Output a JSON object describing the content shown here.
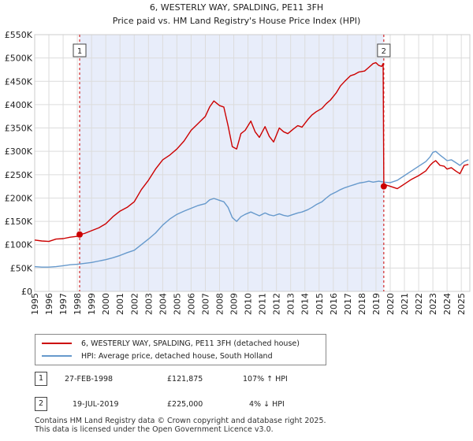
{
  "chart_data": {
    "type": "line",
    "title": "6, WESTERLY WAY, SPALDING, PE11 3FH",
    "subtitle": "Price paid vs. HM Land Registry's House Price Index (HPI)",
    "xlabel": "",
    "ylabel": "",
    "xlim": [
      1995,
      2025.6
    ],
    "ylim": [
      0,
      550000
    ],
    "y_ticks": [
      {
        "value": 0,
        "label": "£0"
      },
      {
        "value": 50000,
        "label": "£50K"
      },
      {
        "value": 100000,
        "label": "£100K"
      },
      {
        "value": 150000,
        "label": "£150K"
      },
      {
        "value": 200000,
        "label": "£200K"
      },
      {
        "value": 250000,
        "label": "£250K"
      },
      {
        "value": 300000,
        "label": "£300K"
      },
      {
        "value": 350000,
        "label": "£350K"
      },
      {
        "value": 400000,
        "label": "£400K"
      },
      {
        "value": 450000,
        "label": "£450K"
      },
      {
        "value": 500000,
        "label": "£500K"
      },
      {
        "value": 550000,
        "label": "£550K"
      }
    ],
    "x_ticks": [
      "1995",
      "1996",
      "1997",
      "1998",
      "1999",
      "2000",
      "2001",
      "2002",
      "2003",
      "2004",
      "2005",
      "2006",
      "2007",
      "2008",
      "2009",
      "2010",
      "2011",
      "2012",
      "2013",
      "2014",
      "2015",
      "2016",
      "2017",
      "2018",
      "2019",
      "2020",
      "2021",
      "2022",
      "2023",
      "2024",
      "2025"
    ],
    "grid": true,
    "colors": {
      "property": "#cc0000",
      "hpi": "#6699cc",
      "band": "#e8edfa",
      "marker_line": "#cc0000"
    },
    "ownership_band": {
      "start": 1998.16,
      "end": 2019.55
    },
    "series": [
      {
        "name": "6, WESTERLY WAY, SPALDING, PE11 3FH (detached house)",
        "color": "#cc0000",
        "x": [
          1995.0,
          1995.5,
          1996.0,
          1996.5,
          1997.0,
          1997.5,
          1998.0,
          1998.16,
          1998.5,
          1999.0,
          1999.5,
          2000.0,
          2000.5,
          2001.0,
          2001.5,
          2002.0,
          2002.5,
          2003.0,
          2003.5,
          2004.0,
          2004.5,
          2005.0,
          2005.5,
          2006.0,
          2006.5,
          2007.0,
          2007.3,
          2007.6,
          2008.0,
          2008.3,
          2008.6,
          2008.9,
          2009.2,
          2009.5,
          2009.8,
          2010.2,
          2010.5,
          2010.8,
          2011.2,
          2011.5,
          2011.8,
          2012.2,
          2012.5,
          2012.8,
          2013.2,
          2013.5,
          2013.8,
          2014.2,
          2014.5,
          2014.8,
          2015.2,
          2015.5,
          2015.8,
          2016.2,
          2016.5,
          2016.8,
          2017.2,
          2017.5,
          2017.8,
          2018.2,
          2018.5,
          2018.8,
          2019.0,
          2019.2,
          2019.4,
          2019.5,
          2019.55,
          2019.7,
          2020.0,
          2020.5,
          2021.0,
          2021.5,
          2022.0,
          2022.5,
          2022.8,
          2023.0,
          2023.2,
          2023.5,
          2023.8,
          2024.0,
          2024.3,
          2024.6,
          2024.9,
          2025.2,
          2025.5
        ],
        "y": [
          110000,
          108000,
          107000,
          112000,
          113000,
          116000,
          118000,
          121875,
          124000,
          130000,
          136000,
          145000,
          160000,
          172000,
          180000,
          192000,
          218000,
          238000,
          262000,
          282000,
          292000,
          305000,
          322000,
          345000,
          360000,
          375000,
          395000,
          408000,
          398000,
          395000,
          355000,
          310000,
          305000,
          338000,
          345000,
          365000,
          342000,
          330000,
          353000,
          332000,
          320000,
          350000,
          342000,
          338000,
          348000,
          355000,
          352000,
          368000,
          378000,
          385000,
          392000,
          402000,
          410000,
          425000,
          440000,
          450000,
          462000,
          465000,
          470000,
          472000,
          480000,
          488000,
          490000,
          484000,
          482000,
          488000,
          225000,
          228000,
          225000,
          220000,
          230000,
          240000,
          248000,
          258000,
          270000,
          276000,
          280000,
          270000,
          268000,
          262000,
          265000,
          258000,
          252000,
          270000,
          272000
        ]
      },
      {
        "name": "HPI: Average price, detached house, South Holland",
        "color": "#6699cc",
        "x": [
          1995.0,
          1995.5,
          1996.0,
          1996.5,
          1997.0,
          1997.5,
          1998.0,
          1998.5,
          1999.0,
          1999.5,
          2000.0,
          2000.5,
          2001.0,
          2001.5,
          2002.0,
          2002.5,
          2003.0,
          2003.5,
          2004.0,
          2004.5,
          2005.0,
          2005.5,
          2006.0,
          2006.5,
          2007.0,
          2007.3,
          2007.6,
          2008.0,
          2008.3,
          2008.6,
          2008.9,
          2009.2,
          2009.5,
          2009.8,
          2010.2,
          2010.5,
          2010.8,
          2011.2,
          2011.5,
          2011.8,
          2012.2,
          2012.5,
          2012.8,
          2013.2,
          2013.5,
          2013.8,
          2014.2,
          2014.5,
          2014.8,
          2015.2,
          2015.5,
          2015.8,
          2016.2,
          2016.5,
          2016.8,
          2017.2,
          2017.5,
          2017.8,
          2018.2,
          2018.5,
          2018.8,
          2019.2,
          2019.55,
          2020.0,
          2020.5,
          2021.0,
          2021.5,
          2022.0,
          2022.5,
          2022.8,
          2023.0,
          2023.2,
          2023.5,
          2023.8,
          2024.0,
          2024.3,
          2024.6,
          2024.9,
          2025.2,
          2025.5
        ],
        "y": [
          53000,
          52000,
          52000,
          53000,
          55000,
          57000,
          58000,
          60000,
          62000,
          65000,
          68000,
          72000,
          77000,
          83000,
          88000,
          100000,
          112000,
          125000,
          142000,
          155000,
          165000,
          172000,
          178000,
          184000,
          188000,
          196000,
          199000,
          195000,
          192000,
          180000,
          158000,
          150000,
          160000,
          165000,
          170000,
          166000,
          162000,
          168000,
          164000,
          162000,
          166000,
          163000,
          161000,
          165000,
          168000,
          170000,
          175000,
          180000,
          186000,
          192000,
          200000,
          207000,
          213000,
          218000,
          222000,
          226000,
          229000,
          232000,
          234000,
          236000,
          234000,
          236000,
          234000,
          233000,
          238000,
          248000,
          258000,
          268000,
          278000,
          288000,
          298000,
          300000,
          292000,
          285000,
          280000,
          282000,
          276000,
          270000,
          278000,
          282000
        ]
      }
    ],
    "sales": [
      {
        "label": "1",
        "x": 1998.16,
        "y": 121875
      },
      {
        "label": "2",
        "x": 2019.55,
        "y": 225000
      }
    ]
  },
  "legend": {
    "property_label": "6, WESTERLY WAY, SPALDING, PE11 3FH (detached house)",
    "hpi_label": "HPI: Average price, detached house, South Holland"
  },
  "sales_table": [
    {
      "num": "1",
      "date": "27-FEB-1998",
      "price": "£121,875",
      "delta": "107% ↑ HPI"
    },
    {
      "num": "2",
      "date": "19-JUL-2019",
      "price": "£225,000",
      "delta": "4% ↓ HPI"
    }
  ],
  "footer": {
    "line1": "Contains HM Land Registry data © Crown copyright and database right 2025.",
    "line2": "This data is licensed under the Open Government Licence v3.0."
  }
}
